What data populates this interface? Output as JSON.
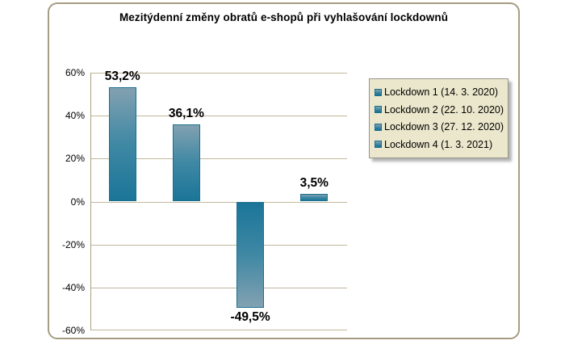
{
  "title": "Mezitýdenní změny obratů e-shopů při vyhlašování lockdownů",
  "chart_data": {
    "type": "bar",
    "categories": [
      "Lockdown 1 (14. 3. 2020)",
      "Lockdown 2 (22. 10. 2020)",
      "Lockdown 3 (27. 12. 2020)",
      "Lockdown 4 (1. 3. 2021)"
    ],
    "values": [
      53.2,
      36.1,
      -49.5,
      3.5
    ],
    "value_labels": [
      "53,2%",
      "36,1%",
      "-49,5%",
      "3,5%"
    ],
    "title": "Mezitýdenní změny obratů e-shopů při vyhlašování lockdownů",
    "xlabel": "",
    "ylabel": "",
    "ylim": [
      -60,
      60
    ],
    "yticks": [
      60,
      40,
      20,
      0,
      -20,
      -40,
      -60
    ],
    "ytick_labels": [
      "60%",
      "40%",
      "20%",
      "0%",
      "-20%",
      "-40%",
      "-60%"
    ],
    "grid": true,
    "legend_position": "right",
    "legend": [
      "Lockdown 1 (14. 3. 2020)",
      "Lockdown 2 (22. 10. 2020)",
      "Lockdown 3 (27. 12. 2020)",
      "Lockdown 4 (1. 3. 2021)"
    ]
  },
  "colors": {
    "bar_light": "#82a1b1",
    "bar_mid": "#3f88a4",
    "bar_dark": "#1b7598",
    "bar_border": "#19708f",
    "gridline": "#c0b79b",
    "axis_line": "#ab9f84",
    "legend_bg": "#ebe7cc",
    "text": "#000000"
  }
}
